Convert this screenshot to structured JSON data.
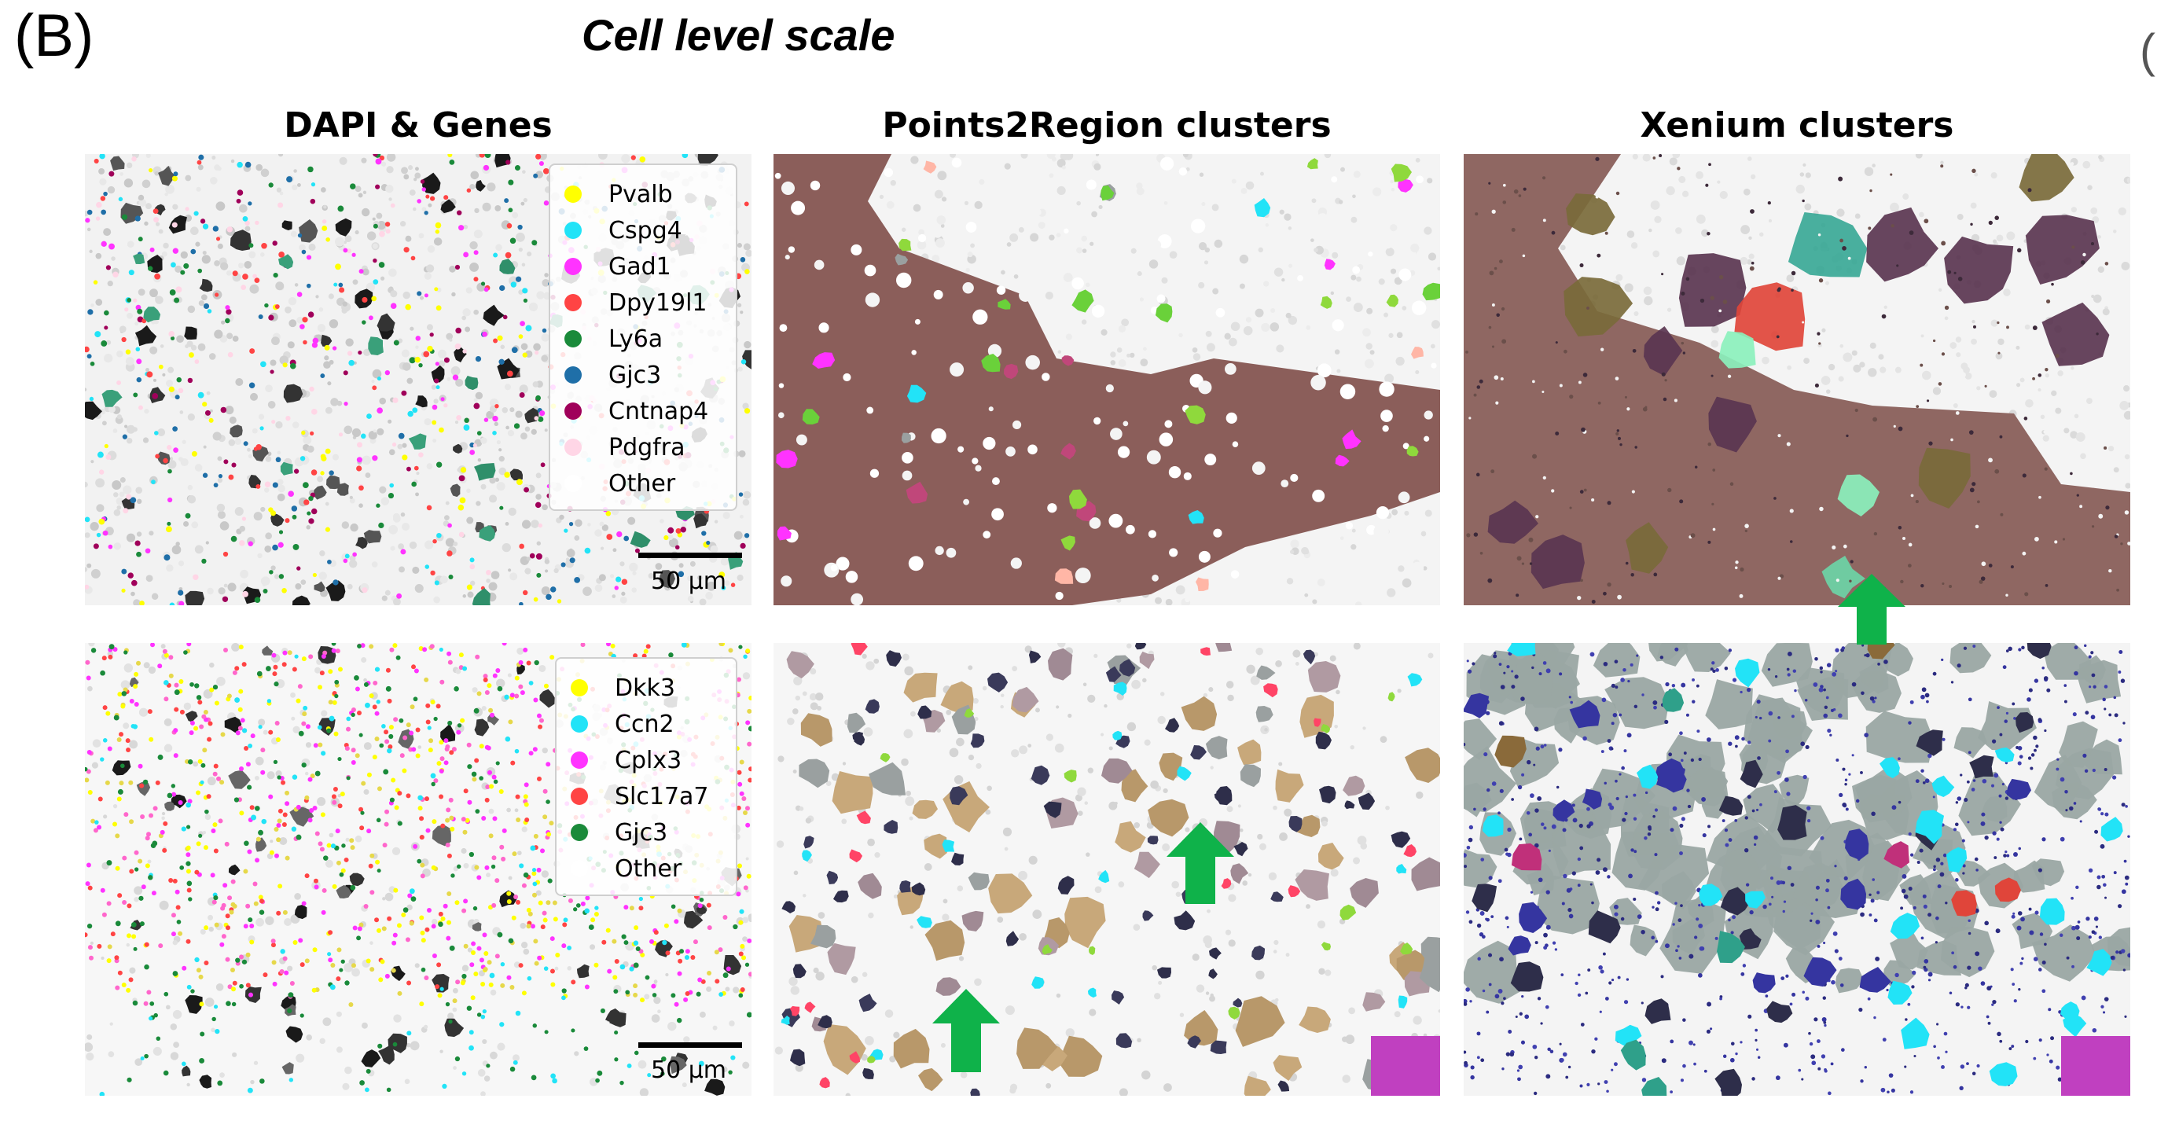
{
  "figure": {
    "panel_tag": "(B)",
    "title": "Cell level scale",
    "edge_glyph": "("
  },
  "columns": [
    {
      "title": "DAPI & Genes"
    },
    {
      "title": "Points2Region clusters"
    },
    {
      "title": "Xenium clusters"
    }
  ],
  "legends": {
    "top": [
      {
        "label": "Pvalb",
        "color": "#ffff00"
      },
      {
        "label": "Cspg4",
        "color": "#22e3f7"
      },
      {
        "label": "Gad1",
        "color": "#ff33ff"
      },
      {
        "label": "Dpy19l1",
        "color": "#ff4444"
      },
      {
        "label": "Ly6a",
        "color": "#1a8a3a"
      },
      {
        "label": "Gjc3",
        "color": "#1f6fa8"
      },
      {
        "label": "Cntnap4",
        "color": "#a0005a"
      },
      {
        "label": "Pdgfra",
        "color": "#ffd6e6"
      },
      {
        "label": "Other",
        "color": "#ffffff"
      }
    ],
    "bottom": [
      {
        "label": "Dkk3",
        "color": "#ffff00"
      },
      {
        "label": "Ccn2",
        "color": "#22e3f7"
      },
      {
        "label": "Cplx3",
        "color": "#ff33ff"
      },
      {
        "label": "Slc17a7",
        "color": "#ff4444"
      },
      {
        "label": "Gjc3",
        "color": "#1a8a3a"
      },
      {
        "label": "Other",
        "color": "#ffffff"
      }
    ]
  },
  "scalebars": {
    "top": {
      "label": "50 µm"
    },
    "bottom": {
      "label": "50 µm"
    }
  },
  "colors": {
    "arrow": "#0fb24a",
    "background_tissue": "#e6e6e6",
    "p2r_top_main": "#8b5e5a",
    "xenium_top_main": "#8f6762",
    "xenium_bottom_main": "#9aa7a3"
  }
}
